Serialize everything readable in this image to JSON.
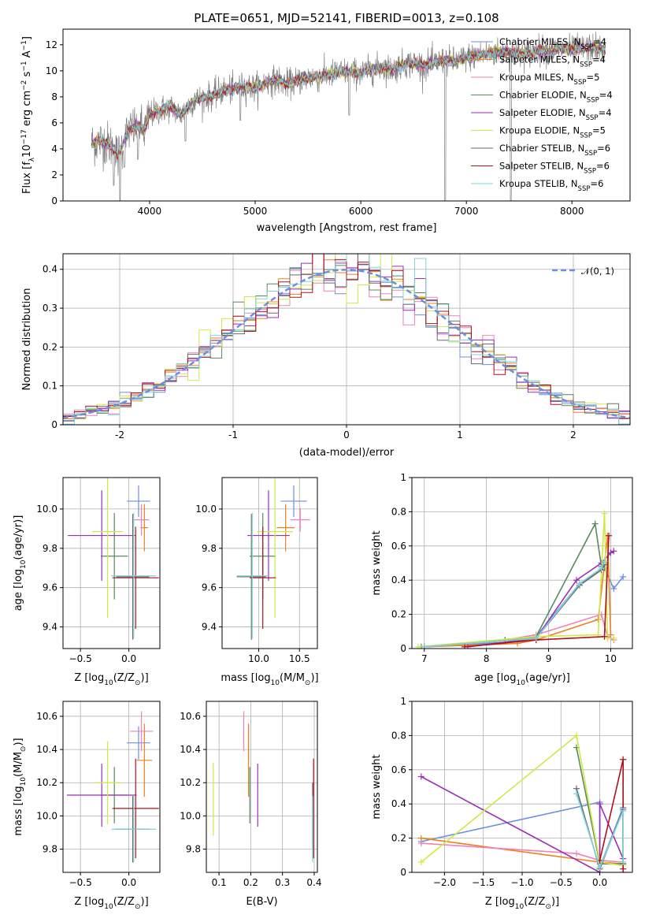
{
  "colors": {
    "C1": "#6b8fe3",
    "C2": "#f07f1e",
    "C3": "#ee82ba",
    "C4": "#5a8a5f",
    "C5": "#9b2fb8",
    "C6": "#cfe846",
    "C7": "#6a6a6a",
    "C8": "#b0121c",
    "C9": "#7ed5d9"
  },
  "legend": [
    {
      "label": "Chabrier MILES, N",
      "sub": "SSP",
      "rest": "=4",
      "color": "#6b8fe3"
    },
    {
      "label": "Salpeter MILES, N",
      "sub": "SSP",
      "rest": "=4",
      "color": "#f07f1e"
    },
    {
      "label": "Kroupa MILES, N",
      "sub": "SSP",
      "rest": "=5",
      "color": "#ee82ba"
    },
    {
      "label": "Chabrier ELODIE, N",
      "sub": "SSP",
      "rest": "=4",
      "color": "#5a8a5f"
    },
    {
      "label": "Salpeter ELODIE, N",
      "sub": "SSP",
      "rest": "=4",
      "color": "#9b2fb8"
    },
    {
      "label": "Kroupa ELODIE, N",
      "sub": "SSP",
      "rest": "=5",
      "color": "#cfe846"
    },
    {
      "label": "Chabrier STELIB, N",
      "sub": "SSP",
      "rest": "=6",
      "color": "#6a6a6a"
    },
    {
      "label": "Salpeter STELIB, N",
      "sub": "SSP",
      "rest": "=6",
      "color": "#b0121c"
    },
    {
      "label": "Kroupa STELIB, N",
      "sub": "SSP",
      "rest": "=6",
      "color": "#7ed5d9"
    }
  ],
  "chart_data": [
    {
      "id": "spectrum",
      "type": "line",
      "title": "PLATE=0651, MJD=52141, FIBERID=0013, z=0.108",
      "xlabel": "wavelength [Angstrom, rest frame]",
      "ylabel_pre": "Flux [f",
      "ylabel_sub": "λ",
      "ylabel_mid": "10",
      "ylabel_sup1": "−17",
      "ylabel_post1": " erg cm",
      "ylabel_sup2": "−2",
      "ylabel_post2": " s",
      "ylabel_sup3": "−1",
      "ylabel_post3": " A",
      "ylabel_sup4": "−1",
      "ylabel_end": "]",
      "xlim": [
        3180,
        8550
      ],
      "ylim": [
        0,
        13.2
      ],
      "xticks": [
        4000,
        5000,
        6000,
        7000,
        8000
      ],
      "yticks": [
        0,
        2,
        4,
        6,
        8,
        10,
        12
      ],
      "grid": false,
      "model_x": [
        3450,
        3550,
        3650,
        3700,
        3800,
        3900,
        3950,
        4000,
        4100,
        4200,
        4300,
        4400,
        4500,
        4600,
        4700,
        4800,
        4900,
        5000,
        5100,
        5200,
        5300,
        5400,
        5500,
        5600,
        5700,
        5800,
        5900,
        6000,
        6100,
        6200,
        6300,
        6400,
        6500,
        6600,
        6700,
        6800,
        6900,
        7000,
        7100,
        7200,
        7300,
        7400,
        7500,
        7600,
        7700,
        7800,
        7900,
        8000,
        8100,
        8200,
        8300
      ],
      "model_y": [
        4.4,
        4.6,
        4.2,
        3.4,
        5.4,
        5.8,
        5.3,
        6.6,
        7.0,
        7.2,
        6.6,
        7.6,
        7.9,
        8.1,
        8.5,
        8.6,
        8.8,
        8.7,
        9.1,
        9.3,
        9.0,
        9.2,
        9.5,
        9.5,
        9.7,
        9.9,
        9.9,
        9.8,
        10.1,
        10.3,
        10.1,
        10.5,
        10.6,
        10.4,
        10.6,
        10.8,
        10.7,
        11.0,
        11.2,
        11.3,
        11.4,
        11.5,
        11.3,
        11.4,
        11.6,
        11.5,
        11.7,
        11.6,
        11.7,
        11.8,
        11.7
      ],
      "dips": [
        {
          "x": 3660,
          "y": 1.2
        },
        {
          "x": 3720,
          "y": 0.0
        },
        {
          "x": 3760,
          "y": 2.6
        },
        {
          "x": 3890,
          "y": 3.2
        },
        {
          "x": 4340,
          "y": 4.6
        },
        {
          "x": 4860,
          "y": 6.2
        },
        {
          "x": 5890,
          "y": 6.6
        },
        {
          "x": 6800,
          "y": 0.0
        },
        {
          "x": 7420,
          "y": 0.0
        }
      ]
    },
    {
      "id": "histogram",
      "type": "bar",
      "xlabel": "(data-model)/error",
      "ylabel": "Normed distribution",
      "xlim": [
        -2.5,
        2.5
      ],
      "ylim": [
        0,
        0.44
      ],
      "xticks": [
        -2,
        -1,
        0,
        1,
        2
      ],
      "yticks": [
        0.0,
        0.1,
        0.2,
        0.3,
        0.4
      ],
      "grid": true,
      "curve_label": "𝒩(0, 1)",
      "curve_color": "#6b8fe3",
      "bins": 50
    },
    {
      "id": "age-vs-Z",
      "type": "scatter",
      "xlabel_pre": "Z [log",
      "xlabel_sub": "10",
      "xlabel_post": "(Z/Z",
      "xlabel_sub2": "⊙",
      "xlabel_end": ")]",
      "ylabel_pre": "age  [log",
      "ylabel_sub": "10",
      "ylabel_post": "(age/yr)]",
      "xlim": [
        -0.68,
        0.32
      ],
      "ylim": [
        9.29,
        10.16
      ],
      "xticks": [
        -0.5,
        0.0
      ],
      "xticklabels": [
        "−0.5",
        "0.0"
      ],
      "yticks": [
        9.4,
        9.6,
        9.8,
        10.0
      ],
      "yticklabels": [
        "9.4",
        "9.6",
        "9.8",
        "10.0"
      ],
      "grid": true,
      "points": [
        {
          "x": 0.1,
          "y": 10.04,
          "xerr": 0.12,
          "yerr": 0.08,
          "color": "#6b8fe3"
        },
        {
          "x": 0.16,
          "y": 9.905,
          "xerr": 0.04,
          "yerr": 0.12,
          "color": "#f07f1e"
        },
        {
          "x": 0.13,
          "y": 9.945,
          "xerr": 0.08,
          "yerr": 0.08,
          "color": "#ee82ba"
        },
        {
          "x": -0.15,
          "y": 9.76,
          "xerr": 0.14,
          "yerr": 0.22,
          "color": "#5a8a5f"
        },
        {
          "x": -0.28,
          "y": 9.865,
          "xerr": 0.35,
          "yerr": 0.23,
          "color": "#9b2fb8"
        },
        {
          "x": -0.22,
          "y": 9.885,
          "xerr": 0.16,
          "yerr": 0.44,
          "color": "#cfe846"
        },
        {
          "x": 0.04,
          "y": 9.655,
          "xerr": 0.17,
          "yerr": 0.32,
          "color": "#6a6a6a"
        },
        {
          "x": 0.07,
          "y": 9.65,
          "xerr": 0.24,
          "yerr": 0.26,
          "color": "#b0121c"
        },
        {
          "x": 0.05,
          "y": 9.66,
          "xerr": 0.23,
          "yerr": 0.32,
          "color": "#7ed5d9"
        }
      ]
    },
    {
      "id": "age-vs-mass",
      "type": "scatter",
      "xlabel_pre": "mass [log",
      "xlabel_sub": "10",
      "xlabel_post": "(M/M",
      "xlabel_sub2": "⊙",
      "xlabel_end": ")]",
      "ylabel_pre": "",
      "ylabel_sub": "",
      "ylabel_post": "",
      "xlim": [
        9.55,
        10.72
      ],
      "ylim": [
        9.29,
        10.16
      ],
      "xticks": [
        10.0,
        10.5
      ],
      "xticklabels": [
        "10.0",
        "10.5"
      ],
      "yticks": [
        9.4,
        9.6,
        9.8,
        10.0
      ],
      "yticklabels": [
        "9.4",
        "9.6",
        "9.8",
        "10.0"
      ],
      "grid": true,
      "points": [
        {
          "x": 10.43,
          "y": 10.04,
          "xerr": 0.16,
          "yerr": 0.08,
          "color": "#6b8fe3"
        },
        {
          "x": 10.33,
          "y": 9.905,
          "xerr": 0.11,
          "yerr": 0.12,
          "color": "#f07f1e"
        },
        {
          "x": 10.51,
          "y": 9.945,
          "xerr": 0.12,
          "yerr": 0.06,
          "color": "#ee82ba"
        },
        {
          "x": 10.05,
          "y": 9.76,
          "xerr": 0.16,
          "yerr": 0.22,
          "color": "#5a8a5f"
        },
        {
          "x": 10.12,
          "y": 9.865,
          "xerr": 0.26,
          "yerr": 0.23,
          "color": "#9b2fb8"
        },
        {
          "x": 10.2,
          "y": 9.885,
          "xerr": 0.22,
          "yerr": 0.44,
          "color": "#cfe846"
        },
        {
          "x": 9.91,
          "y": 9.655,
          "xerr": 0.18,
          "yerr": 0.32,
          "color": "#6a6a6a"
        },
        {
          "x": 10.05,
          "y": 9.65,
          "xerr": 0.16,
          "yerr": 0.26,
          "color": "#b0121c"
        },
        {
          "x": 9.92,
          "y": 9.66,
          "xerr": 0.19,
          "yerr": 0.32,
          "color": "#7ed5d9"
        }
      ]
    },
    {
      "id": "weight-vs-age",
      "type": "line",
      "xlabel_pre": "age  [log",
      "xlabel_sub": "10",
      "xlabel_post": "(age/yr)]",
      "ylabel": "mass weight",
      "xlim": [
        6.8,
        10.35
      ],
      "ylim": [
        0,
        1.0
      ],
      "xticks": [
        7,
        8,
        9,
        10
      ],
      "yticks": [
        0.0,
        0.2,
        0.4,
        0.6,
        0.8,
        1.0
      ],
      "grid": true,
      "series": [
        {
          "color": "#6b8fe3",
          "x": [
            7.0,
            8.5,
            8.8,
            9.5,
            9.9,
            10.05,
            10.2
          ],
          "y": [
            0.01,
            0.04,
            0.07,
            0.38,
            0.47,
            0.35,
            0.42
          ]
        },
        {
          "color": "#f07f1e",
          "x": [
            7.0,
            8.5,
            8.8,
            9.8,
            9.95,
            10.0
          ],
          "y": [
            0.01,
            0.03,
            0.05,
            0.17,
            0.66,
            0.08
          ]
        },
        {
          "color": "#ee82ba",
          "x": [
            7.0,
            8.3,
            8.8,
            9.85,
            9.95,
            10.05
          ],
          "y": [
            0.01,
            0.05,
            0.08,
            0.2,
            0.07,
            0.05
          ]
        },
        {
          "color": "#5a8a5f",
          "x": [
            6.95,
            8.3,
            8.8,
            9.75,
            9.85,
            9.9
          ],
          "y": [
            0.01,
            0.05,
            0.07,
            0.73,
            0.48,
            0.5
          ]
        },
        {
          "color": "#9b2fb8",
          "x": [
            7.7,
            8.8,
            9.45,
            9.85,
            10.0,
            10.05
          ],
          "y": [
            0.01,
            0.06,
            0.4,
            0.5,
            0.56,
            0.57
          ]
        },
        {
          "color": "#cfe846",
          "x": [
            6.9,
            8.8,
            9.8,
            9.9,
            9.95,
            10.05
          ],
          "y": [
            0.01,
            0.07,
            0.08,
            0.79,
            0.06,
            0.06
          ]
        },
        {
          "color": "#6a6a6a",
          "x": [
            7.0,
            8.8,
            9.5,
            9.85,
            9.9
          ],
          "y": [
            0.01,
            0.06,
            0.37,
            0.46,
            0.49
          ]
        },
        {
          "color": "#b0121c",
          "x": [
            7.65,
            8.8,
            9.9,
            9.97
          ],
          "y": [
            0.01,
            0.05,
            0.07,
            0.66
          ]
        },
        {
          "color": "#7ed5d9",
          "x": [
            7.0,
            8.8,
            9.5,
            9.85,
            9.9
          ],
          "y": [
            0.01,
            0.06,
            0.38,
            0.47,
            0.51
          ]
        }
      ]
    },
    {
      "id": "mass-vs-Z",
      "type": "scatter",
      "xlabel_pre": "Z [log",
      "xlabel_sub": "10",
      "xlabel_post": "(Z/Z",
      "xlabel_sub2": "⊙",
      "xlabel_end": ")]",
      "ylabel_pre": "mass [log",
      "ylabel_sub": "10",
      "ylabel_post": "(M/M",
      "ylabel_sub2": "⊙",
      "ylabel_end": ")]",
      "xlim": [
        -0.68,
        0.32
      ],
      "ylim": [
        9.66,
        10.69
      ],
      "xticks": [
        -0.5,
        0.0
      ],
      "xticklabels": [
        "−0.5",
        "0.0"
      ],
      "yticks": [
        9.8,
        10.0,
        10.2,
        10.4,
        10.6
      ],
      "yticklabels": [
        "9.8",
        "10.0",
        "10.2",
        "10.4",
        "10.6"
      ],
      "grid": true,
      "points": [
        {
          "x": 0.1,
          "y": 10.44,
          "xerr": 0.12,
          "yerr": 0.1,
          "color": "#6b8fe3"
        },
        {
          "x": 0.16,
          "y": 10.335,
          "xerr": 0.08,
          "yerr": 0.22,
          "color": "#f07f1e"
        },
        {
          "x": 0.13,
          "y": 10.51,
          "xerr": 0.12,
          "yerr": 0.12,
          "color": "#ee82ba"
        },
        {
          "x": -0.15,
          "y": 10.125,
          "xerr": 0.14,
          "yerr": 0.17,
          "color": "#5a8a5f"
        },
        {
          "x": -0.28,
          "y": 10.125,
          "xerr": 0.36,
          "yerr": 0.19,
          "color": "#9b2fb8"
        },
        {
          "x": -0.22,
          "y": 10.2,
          "xerr": 0.14,
          "yerr": 0.25,
          "color": "#cfe846"
        },
        {
          "x": 0.04,
          "y": 9.92,
          "xerr": 0.18,
          "yerr": 0.2,
          "color": "#6a6a6a"
        },
        {
          "x": 0.07,
          "y": 10.045,
          "xerr": 0.24,
          "yerr": 0.3,
          "color": "#b0121c"
        },
        {
          "x": 0.05,
          "y": 9.92,
          "xerr": 0.23,
          "yerr": 0.2,
          "color": "#7ed5d9"
        }
      ]
    },
    {
      "id": "mass-vs-ebv",
      "type": "scatter",
      "xlabel": "E(B-V)",
      "xlim": [
        0.06,
        0.41
      ],
      "ylim": [
        9.66,
        10.69
      ],
      "xticks": [
        0.1,
        0.2,
        0.3,
        0.4
      ],
      "xticklabels": [
        "0.1",
        "0.2",
        "0.3",
        "0.4"
      ],
      "yticks": [
        9.8,
        10.0,
        10.2,
        10.4,
        10.6
      ],
      "yticklabels": [
        "9.8",
        "10.0",
        "10.2",
        "10.4",
        "10.6"
      ],
      "grid": true,
      "points": [
        {
          "x": 0.193,
          "y": 10.44,
          "xerr": 0,
          "yerr": 0.1,
          "color": "#6b8fe3"
        },
        {
          "x": 0.193,
          "y": 10.335,
          "xerr": 0,
          "yerr": 0.22,
          "color": "#f07f1e"
        },
        {
          "x": 0.178,
          "y": 10.51,
          "xerr": 0,
          "yerr": 0.12,
          "color": "#ee82ba"
        },
        {
          "x": 0.197,
          "y": 10.125,
          "xerr": 0,
          "yerr": 0.17,
          "color": "#5a8a5f"
        },
        {
          "x": 0.222,
          "y": 10.125,
          "xerr": 0,
          "yerr": 0.19,
          "color": "#9b2fb8"
        },
        {
          "x": 0.082,
          "y": 10.1,
          "xerr": 0,
          "yerr": 0.22,
          "color": "#cfe846"
        },
        {
          "x": 0.395,
          "y": 10.0,
          "xerr": 0,
          "yerr": 0.2,
          "color": "#6a6a6a"
        },
        {
          "x": 0.398,
          "y": 10.045,
          "xerr": 0,
          "yerr": 0.3,
          "color": "#b0121c"
        },
        {
          "x": 0.395,
          "y": 9.92,
          "xerr": 0,
          "yerr": 0.2,
          "color": "#7ed5d9"
        }
      ]
    },
    {
      "id": "weight-vs-Z",
      "type": "line",
      "xlabel_pre": "Z [log",
      "xlabel_sub": "10",
      "xlabel_post": "(Z/Z",
      "xlabel_sub2": "⊙",
      "xlabel_end": ")]",
      "ylabel": "mass weight",
      "xlim": [
        -2.42,
        0.42
      ],
      "ylim": [
        0,
        1.0
      ],
      "xticks": [
        -2.0,
        -1.5,
        -1.0,
        -0.5,
        0.0
      ],
      "xticklabels": [
        "−2.0",
        "−1.5",
        "−1.0",
        "−0.5",
        "0.0"
      ],
      "yticks": [
        0.0,
        0.2,
        0.4,
        0.6,
        0.8,
        1.0
      ],
      "grid": true,
      "series": [
        {
          "color": "#6b8fe3",
          "x": [
            -2.3,
            0.0,
            0.0,
            0.3
          ],
          "y": [
            0.18,
            0.41,
            0.03,
            0.38
          ]
        },
        {
          "color": "#f07f1e",
          "x": [
            -2.3,
            0.0,
            0.3,
            0.3
          ],
          "y": [
            0.2,
            0.06,
            0.05,
            0.66
          ]
        },
        {
          "color": "#ee82ba",
          "x": [
            -2.3,
            -0.3,
            0.0,
            0.3
          ],
          "y": [
            0.17,
            0.11,
            0.07,
            0.06
          ]
        },
        {
          "color": "#5a8a5f",
          "x": [
            -0.3,
            0.0,
            0.3,
            0.3
          ],
          "y": [
            0.73,
            0.05,
            0.05,
            0.36
          ]
        },
        {
          "color": "#9b2fb8",
          "x": [
            -2.3,
            0.0,
            0.0,
            0.3,
            0.3
          ],
          "y": [
            0.56,
            0.0,
            0.4,
            0.08,
            0.0
          ]
        },
        {
          "color": "#cfe846",
          "x": [
            -2.3,
            -0.3,
            0.0,
            0.3
          ],
          "y": [
            0.06,
            0.8,
            0.06,
            0.04
          ]
        },
        {
          "color": "#6a6a6a",
          "x": [
            -0.3,
            0.0,
            0.3,
            0.3
          ],
          "y": [
            0.49,
            0.02,
            0.37,
            0.05
          ]
        },
        {
          "color": "#b0121c",
          "x": [
            0.0,
            0.3,
            0.3
          ],
          "y": [
            0.07,
            0.66,
            0.02
          ]
        },
        {
          "color": "#7ed5d9",
          "x": [
            -0.3,
            0.0,
            0.3,
            0.3
          ],
          "y": [
            0.46,
            0.03,
            0.36,
            0.06
          ]
        }
      ]
    }
  ]
}
